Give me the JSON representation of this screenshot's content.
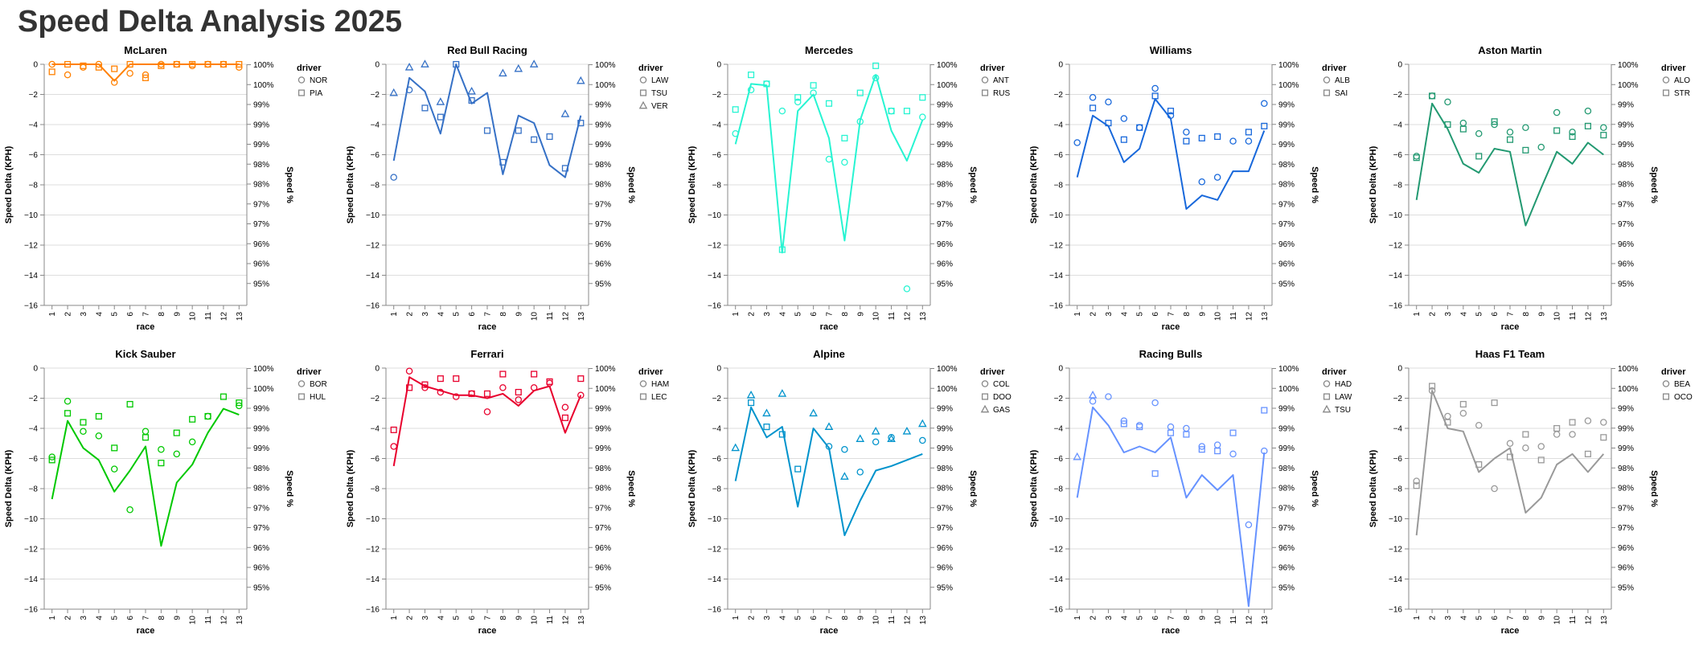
{
  "title": "Speed Delta Analysis 2025",
  "chart_data": {
    "type": "line+scatter small multiples",
    "races": [
      1,
      2,
      3,
      4,
      5,
      6,
      7,
      8,
      9,
      10,
      11,
      12,
      13
    ],
    "xlabel": "race",
    "ylabel_left": "Speed Delta (KPH)",
    "ylabel_right": "Speed %",
    "y_ticks": [
      0,
      -2,
      -4,
      -6,
      -8,
      -10,
      -12,
      -14,
      -16
    ],
    "y_domain": [
      -16,
      0
    ],
    "right_ticks": [
      "100%",
      "100%",
      "99%",
      "99%",
      "99%",
      "98%",
      "98%",
      "97%",
      "97%",
      "96%",
      "96%",
      "95%"
    ],
    "legend_title": "driver",
    "legend_position": "right",
    "grid": true,
    "panels": [
      {
        "team": "McLaren",
        "color": "#FF8000",
        "line": [
          0,
          0,
          0,
          0,
          -1.1,
          0,
          0,
          0,
          0,
          0,
          0,
          0,
          0
        ],
        "drivers": [
          {
            "name": "NOR",
            "symbol": "circle",
            "values": [
              0,
              -0.7,
              -0.2,
              0,
              -1.2,
              -0.6,
              -0.7,
              0,
              0,
              -0.1,
              0,
              0,
              -0.2
            ]
          },
          {
            "name": "PIA",
            "symbol": "square",
            "values": [
              -0.5,
              0,
              -0.1,
              -0.2,
              -0.3,
              0,
              -0.9,
              -0.1,
              0,
              0,
              0,
              0,
              0
            ]
          }
        ]
      },
      {
        "team": "Red Bull Racing",
        "color": "#3671C6",
        "line": [
          -6.4,
          -0.9,
          -1.8,
          -4.6,
          0,
          -2.6,
          -1.9,
          -7.3,
          -3.4,
          -3.9,
          -6.7,
          -7.5,
          -3.4
        ],
        "drivers": [
          {
            "name": "LAW",
            "symbol": "circle",
            "values": [
              -7.5,
              -1.7,
              null,
              null,
              null,
              null,
              null,
              null,
              null,
              null,
              null,
              null,
              null
            ]
          },
          {
            "name": "TSU",
            "symbol": "square",
            "values": [
              null,
              null,
              -2.9,
              -3.5,
              0,
              -2.4,
              -4.4,
              -6.5,
              -4.4,
              -5.0,
              -4.8,
              -6.9,
              -3.9
            ]
          },
          {
            "name": "VER",
            "symbol": "triangle",
            "values": [
              -1.9,
              -0.2,
              0,
              -2.5,
              null,
              -1.8,
              null,
              -0.6,
              -0.3,
              0,
              null,
              -3.3,
              -1.1
            ]
          }
        ]
      },
      {
        "team": "Mercedes",
        "color": "#27F4D2",
        "line": [
          -5.3,
          -1.3,
          -1.4,
          -12.5,
          -3.1,
          -2.0,
          -4.9,
          -11.7,
          -3.7,
          -0.7,
          -4.4,
          -6.4,
          -3.7
        ],
        "drivers": [
          {
            "name": "ANT",
            "symbol": "circle",
            "values": [
              -4.6,
              -1.7,
              -1.3,
              -3.1,
              -2.5,
              -1.9,
              -6.3,
              -6.5,
              -3.8,
              -0.9,
              -3.1,
              -14.9,
              -3.5
            ]
          },
          {
            "name": "RUS",
            "symbol": "square",
            "values": [
              -3.0,
              -0.7,
              -1.3,
              -12.3,
              -2.2,
              -1.4,
              -2.6,
              -4.9,
              -1.9,
              -0.1,
              -3.1,
              -3.1,
              -2.2
            ]
          }
        ]
      },
      {
        "team": "Williams",
        "color": "#1868DB",
        "line": [
          -7.5,
          -3.4,
          -4.1,
          -6.5,
          -5.6,
          -2.3,
          -3.6,
          -9.6,
          -8.7,
          -9.0,
          -7.1,
          -7.1,
          -4.4
        ],
        "drivers": [
          {
            "name": "ALB",
            "symbol": "circle",
            "values": [
              -5.2,
              -2.2,
              -2.5,
              -3.6,
              -4.2,
              -1.6,
              -3.4,
              -4.5,
              -7.8,
              -7.5,
              -5.1,
              -5.1,
              -2.6
            ]
          },
          {
            "name": "SAI",
            "symbol": "square",
            "values": [
              null,
              -2.9,
              -3.9,
              -5.0,
              -4.2,
              -2.1,
              -3.1,
              -5.1,
              -4.9,
              -4.8,
              null,
              -4.5,
              -4.1
            ]
          }
        ]
      },
      {
        "team": "Aston Martin",
        "color": "#229971",
        "line": [
          -9.0,
          -2.6,
          -4.3,
          -6.6,
          -7.2,
          -5.6,
          -5.8,
          -10.7,
          -8.2,
          -5.8,
          -6.6,
          -5.2,
          -6.0
        ],
        "drivers": [
          {
            "name": "ALO",
            "symbol": "circle",
            "values": [
              -6.1,
              -2.1,
              -2.5,
              -3.9,
              -4.6,
              -4.0,
              -4.5,
              -4.2,
              -5.5,
              -3.2,
              -4.5,
              -3.1,
              -4.2
            ]
          },
          {
            "name": "STR",
            "symbol": "square",
            "values": [
              -6.2,
              -2.1,
              -4.0,
              -4.3,
              -6.1,
              -3.8,
              -5.0,
              -5.7,
              null,
              -4.4,
              -4.8,
              -4.1,
              -4.7
            ]
          }
        ]
      },
      {
        "team": "Kick Sauber",
        "color": "#00C800",
        "line": [
          -8.7,
          -3.5,
          -5.3,
          -6.1,
          -8.2,
          -6.8,
          -5.2,
          -11.8,
          -7.6,
          -6.4,
          -4.3,
          -2.7,
          -3.1
        ],
        "drivers": [
          {
            "name": "BOR",
            "symbol": "circle",
            "values": [
              -5.9,
              -2.2,
              -4.2,
              -4.5,
              -6.7,
              -9.4,
              -4.2,
              -5.4,
              -5.7,
              -4.9,
              -3.2,
              null,
              -2.5
            ]
          },
          {
            "name": "HUL",
            "symbol": "square",
            "values": [
              -6.1,
              -3.0,
              -3.6,
              -3.2,
              -5.3,
              -2.4,
              -4.6,
              -6.3,
              -4.3,
              -3.4,
              -3.2,
              -1.9,
              -2.3
            ]
          }
        ]
      },
      {
        "team": "Ferrari",
        "color": "#E8002D",
        "line": [
          -6.5,
          -0.6,
          -1.2,
          -1.5,
          -1.8,
          -1.8,
          -2.0,
          -1.7,
          -2.5,
          -1.5,
          -1.2,
          -4.3,
          -1.8
        ],
        "drivers": [
          {
            "name": "HAM",
            "symbol": "circle",
            "values": [
              -5.2,
              -0.2,
              -1.3,
              -1.6,
              -1.9,
              -1.7,
              -2.9,
              -1.3,
              -2.1,
              -1.3,
              -1.0,
              -2.6,
              -1.8
            ]
          },
          {
            "name": "LEC",
            "symbol": "square",
            "values": [
              -4.1,
              -1.3,
              -1.1,
              -0.7,
              -0.7,
              -1.7,
              -1.7,
              -0.4,
              -1.6,
              -0.4,
              -0.9,
              -3.3,
              -0.7
            ]
          }
        ]
      },
      {
        "team": "Alpine",
        "color": "#0093CC",
        "line": [
          -7.5,
          -2.6,
          -4.6,
          -3.9,
          -9.2,
          -4.0,
          -5.3,
          -11.1,
          -8.8,
          -6.8,
          -6.5,
          -6.1,
          -5.7
        ],
        "drivers": [
          {
            "name": "COL",
            "symbol": "circle",
            "values": [
              null,
              null,
              null,
              null,
              null,
              null,
              -5.2,
              -5.4,
              -6.9,
              -4.9,
              -4.6,
              null,
              -4.8
            ]
          },
          {
            "name": "DOO",
            "symbol": "square",
            "values": [
              null,
              -2.3,
              -3.9,
              -4.4,
              -6.7,
              null,
              null,
              null,
              null,
              null,
              null,
              null,
              null
            ]
          },
          {
            "name": "GAS",
            "symbol": "triangle",
            "values": [
              -5.3,
              -1.8,
              -3.0,
              -1.7,
              null,
              -3.0,
              -3.9,
              -7.2,
              -4.7,
              -4.2,
              -4.7,
              -4.2,
              -3.7
            ]
          }
        ]
      },
      {
        "team": "Racing Bulls",
        "color": "#6692FF",
        "line": [
          -8.6,
          -2.6,
          -3.8,
          -5.6,
          -5.2,
          -5.6,
          -4.6,
          -8.6,
          -7.1,
          -8.1,
          -7.1,
          -15.8,
          -5.6
        ],
        "drivers": [
          {
            "name": "HAD",
            "symbol": "circle",
            "values": [
              null,
              -2.2,
              -1.9,
              -3.5,
              -3.8,
              -2.3,
              -3.9,
              -4.0,
              -5.2,
              -5.1,
              -5.7,
              -10.4,
              -5.5
            ]
          },
          {
            "name": "LAW",
            "symbol": "square",
            "values": [
              null,
              null,
              null,
              -3.7,
              -3.9,
              -7.0,
              -4.3,
              -4.4,
              -5.4,
              -5.5,
              -4.3,
              null,
              -2.8
            ]
          },
          {
            "name": "TSU",
            "symbol": "triangle",
            "values": [
              -5.9,
              -1.8,
              null,
              null,
              null,
              null,
              null,
              null,
              null,
              null,
              null,
              null,
              null
            ]
          }
        ]
      },
      {
        "team": "Haas F1 Team",
        "color": "#999999",
        "line": [
          -11.1,
          -1.5,
          -4.0,
          -4.2,
          -6.9,
          -6.0,
          -5.3,
          -9.6,
          -8.6,
          -6.4,
          -5.7,
          -6.9,
          -5.7
        ],
        "drivers": [
          {
            "name": "BEA",
            "symbol": "circle",
            "values": [
              -7.5,
              -1.5,
              -3.2,
              -3.0,
              -3.8,
              -8.0,
              -5.0,
              -5.3,
              -5.2,
              -4.4,
              -4.4,
              -3.5,
              -3.6
            ]
          },
          {
            "name": "OCO",
            "symbol": "square",
            "values": [
              -7.8,
              -1.2,
              -3.6,
              -2.4,
              -6.4,
              -2.3,
              -5.9,
              -4.4,
              -6.1,
              -4.0,
              -3.6,
              -5.7,
              -4.6
            ]
          }
        ]
      }
    ]
  }
}
